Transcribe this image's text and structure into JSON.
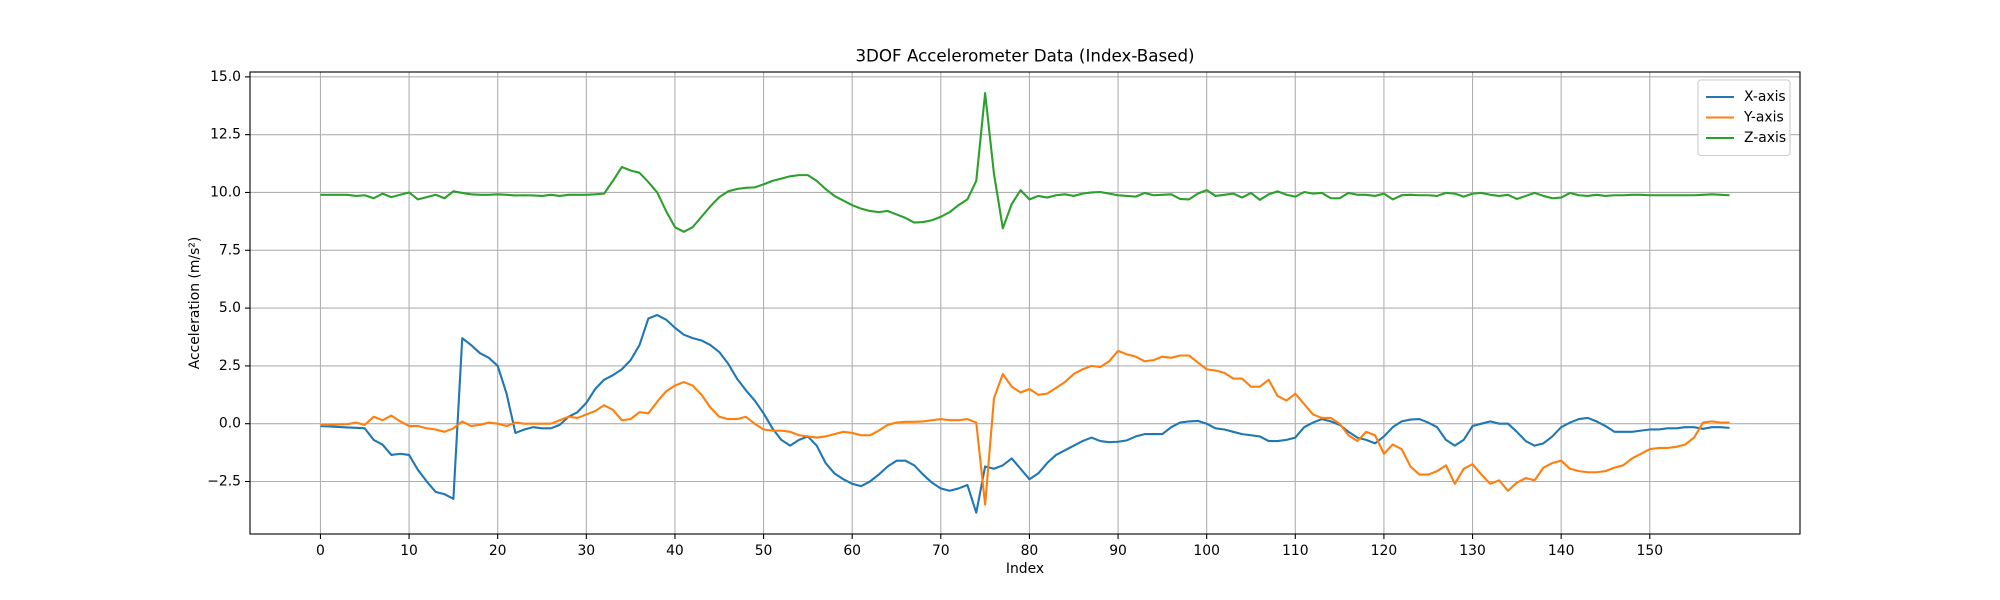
{
  "chart_data": {
    "type": "line",
    "title": "3DOF Accelerometer Data (Index-Based)",
    "xlabel": "Index",
    "ylabel": "Acceleration (m/s²)",
    "x": [
      0,
      1,
      2,
      3,
      4,
      5,
      6,
      7,
      8,
      9,
      10,
      11,
      12,
      13,
      14,
      15,
      16,
      17,
      18,
      19,
      20,
      21,
      22,
      23,
      24,
      25,
      26,
      27,
      28,
      29,
      30,
      31,
      32,
      33,
      34,
      35,
      36,
      37,
      38,
      39,
      40,
      41,
      42,
      43,
      44,
      45,
      46,
      47,
      48,
      49,
      50,
      51,
      52,
      53,
      54,
      55,
      56,
      57,
      58,
      59,
      60,
      61,
      62,
      63,
      64,
      65,
      66,
      67,
      68,
      69,
      70,
      71,
      72,
      73,
      74,
      75,
      76,
      77,
      78,
      79,
      80,
      81,
      82,
      83,
      84,
      85,
      86,
      87,
      88,
      89,
      90,
      91,
      92,
      93,
      94,
      95,
      96,
      97,
      98,
      99,
      100,
      101,
      102,
      103,
      104,
      105,
      106,
      107,
      108,
      109,
      110,
      111,
      112,
      113,
      114,
      115,
      116,
      117,
      118,
      119,
      120,
      121,
      122,
      123,
      124,
      125,
      126,
      127,
      128,
      129,
      130,
      131,
      132,
      133,
      134,
      135,
      136,
      137,
      138,
      139,
      140,
      141,
      142,
      143,
      144,
      145,
      146,
      147,
      148,
      149,
      150,
      151,
      152,
      153,
      154,
      155,
      156,
      157,
      158,
      159
    ],
    "series": [
      {
        "name": "X-axis",
        "color": "#1f77b4",
        "values": [
          -0.1,
          -0.12,
          -0.14,
          -0.16,
          -0.18,
          -0.2,
          -0.7,
          -0.9,
          -1.35,
          -1.3,
          -1.35,
          -2.0,
          -2.5,
          -2.95,
          -3.05,
          -3.25,
          3.7,
          3.4,
          3.05,
          2.85,
          2.5,
          1.3,
          -0.4,
          -0.25,
          -0.15,
          -0.2,
          -0.2,
          -0.05,
          0.3,
          0.5,
          0.9,
          1.5,
          1.9,
          2.1,
          2.35,
          2.75,
          3.4,
          4.55,
          4.7,
          4.5,
          4.15,
          3.85,
          3.7,
          3.6,
          3.4,
          3.1,
          2.6,
          1.95,
          1.45,
          1.0,
          0.45,
          -0.2,
          -0.7,
          -0.95,
          -0.7,
          -0.55,
          -0.95,
          -1.7,
          -2.15,
          -2.4,
          -2.6,
          -2.7,
          -2.5,
          -2.2,
          -1.85,
          -1.6,
          -1.6,
          -1.8,
          -2.2,
          -2.55,
          -2.8,
          -2.9,
          -2.8,
          -2.65,
          -3.85,
          -1.85,
          -1.95,
          -1.8,
          -1.5,
          -1.95,
          -2.4,
          -2.15,
          -1.7,
          -1.35,
          -1.15,
          -0.95,
          -0.75,
          -0.6,
          -0.75,
          -0.8,
          -0.78,
          -0.72,
          -0.55,
          -0.45,
          -0.45,
          -0.45,
          -0.15,
          0.05,
          0.1,
          0.12,
          0.0,
          -0.2,
          -0.25,
          -0.35,
          -0.45,
          -0.5,
          -0.55,
          -0.75,
          -0.75,
          -0.7,
          -0.6,
          -0.15,
          0.05,
          0.2,
          0.1,
          -0.05,
          -0.35,
          -0.6,
          -0.7,
          -0.85,
          -0.55,
          -0.15,
          0.1,
          0.18,
          0.2,
          0.05,
          -0.15,
          -0.7,
          -0.95,
          -0.7,
          -0.1,
          0.0,
          0.1,
          0.0,
          0.0,
          -0.35,
          -0.75,
          -0.95,
          -0.85,
          -0.55,
          -0.15,
          0.05,
          0.2,
          0.25,
          0.1,
          -0.1,
          -0.35,
          -0.35,
          -0.35,
          -0.3,
          -0.25,
          -0.25,
          -0.2,
          -0.2,
          -0.15,
          -0.15,
          -0.22,
          -0.15,
          -0.15,
          -0.18
        ]
      },
      {
        "name": "Y-axis",
        "color": "#ff7f0e",
        "values": [
          -0.05,
          -0.05,
          -0.03,
          -0.02,
          0.05,
          -0.05,
          0.3,
          0.15,
          0.35,
          0.1,
          -0.1,
          -0.1,
          -0.2,
          -0.25,
          -0.35,
          -0.2,
          0.1,
          -0.1,
          -0.05,
          0.05,
          0.0,
          -0.1,
          0.05,
          0.0,
          0.0,
          0.0,
          0.0,
          0.15,
          0.3,
          0.25,
          0.4,
          0.55,
          0.8,
          0.6,
          0.15,
          0.2,
          0.5,
          0.45,
          0.95,
          1.4,
          1.65,
          1.8,
          1.65,
          1.25,
          0.7,
          0.3,
          0.2,
          0.2,
          0.3,
          0.0,
          -0.25,
          -0.3,
          -0.3,
          -0.35,
          -0.5,
          -0.55,
          -0.6,
          -0.55,
          -0.45,
          -0.35,
          -0.4,
          -0.5,
          -0.5,
          -0.3,
          -0.05,
          0.05,
          0.08,
          0.08,
          0.1,
          0.15,
          0.2,
          0.15,
          0.15,
          0.2,
          0.05,
          -3.5,
          1.1,
          2.15,
          1.6,
          1.35,
          1.5,
          1.25,
          1.3,
          1.55,
          1.8,
          2.15,
          2.35,
          2.5,
          2.45,
          2.7,
          3.15,
          3.0,
          2.9,
          2.7,
          2.75,
          2.9,
          2.85,
          2.95,
          2.95,
          2.65,
          2.35,
          2.3,
          2.2,
          1.95,
          1.95,
          1.6,
          1.6,
          1.9,
          1.2,
          1.0,
          1.3,
          0.85,
          0.4,
          0.25,
          0.25,
          0.0,
          -0.5,
          -0.75,
          -0.35,
          -0.5,
          -1.3,
          -0.9,
          -1.1,
          -1.85,
          -2.2,
          -2.2,
          -2.05,
          -1.8,
          -2.6,
          -1.95,
          -1.75,
          -2.2,
          -2.6,
          -2.45,
          -2.9,
          -2.55,
          -2.35,
          -2.45,
          -1.9,
          -1.7,
          -1.6,
          -1.95,
          -2.05,
          -2.1,
          -2.1,
          -2.05,
          -1.9,
          -1.8,
          -1.5,
          -1.3,
          -1.1,
          -1.05,
          -1.05,
          -1.0,
          -0.9,
          -0.6,
          0.05,
          0.1,
          0.05,
          0.05
        ]
      },
      {
        "name": "Z-axis",
        "color": "#2ca02c",
        "values": [
          9.9,
          9.9,
          9.9,
          9.9,
          9.85,
          9.88,
          9.75,
          9.95,
          9.8,
          9.9,
          10.0,
          9.7,
          9.8,
          9.9,
          9.75,
          10.05,
          9.98,
          9.92,
          9.9,
          9.9,
          9.92,
          9.9,
          9.87,
          9.88,
          9.87,
          9.85,
          9.9,
          9.85,
          9.9,
          9.9,
          9.9,
          9.92,
          9.95,
          10.5,
          11.1,
          10.95,
          10.85,
          10.45,
          10.0,
          9.2,
          8.5,
          8.3,
          8.5,
          8.95,
          9.4,
          9.8,
          10.05,
          10.15,
          10.2,
          10.22,
          10.35,
          10.5,
          10.6,
          10.7,
          10.75,
          10.75,
          10.5,
          10.15,
          9.85,
          9.65,
          9.45,
          9.3,
          9.2,
          9.15,
          9.2,
          9.05,
          8.9,
          8.7,
          8.72,
          8.8,
          8.95,
          9.15,
          9.45,
          9.7,
          10.5,
          14.3,
          10.8,
          8.45,
          9.5,
          10.1,
          9.7,
          9.85,
          9.78,
          9.88,
          9.92,
          9.85,
          9.95,
          10.0,
          10.02,
          9.95,
          9.88,
          9.85,
          9.82,
          9.98,
          9.88,
          9.9,
          9.92,
          9.72,
          9.7,
          9.95,
          10.1,
          9.85,
          9.9,
          9.95,
          9.78,
          9.98,
          9.68,
          9.92,
          10.05,
          9.9,
          9.82,
          10.02,
          9.95,
          9.98,
          9.75,
          9.75,
          9.98,
          9.9,
          9.9,
          9.85,
          9.95,
          9.7,
          9.88,
          9.9,
          9.88,
          9.88,
          9.85,
          9.98,
          9.95,
          9.82,
          9.95,
          9.98,
          9.9,
          9.85,
          9.9,
          9.72,
          9.85,
          9.98,
          9.85,
          9.75,
          9.78,
          9.98,
          9.88,
          9.85,
          9.9,
          9.85,
          9.88,
          9.88,
          9.9,
          9.9,
          9.88,
          9.88,
          9.88,
          9.88,
          9.88,
          9.88,
          9.9,
          9.92,
          9.9,
          9.88
        ]
      }
    ],
    "xlim": [
      -7.95,
      166.95
    ],
    "ylim": [
      -4.77,
      15.21
    ],
    "xticks": [
      0,
      10,
      20,
      30,
      40,
      50,
      60,
      70,
      80,
      90,
      100,
      110,
      120,
      130,
      140,
      150
    ],
    "yticks": [
      {
        "value": -2.5,
        "label": "−2.5"
      },
      {
        "value": 0,
        "label": "0.0"
      },
      2.5,
      {
        "value": 5,
        "label": "5.0"
      },
      7.5,
      {
        "value": 10,
        "label": "10.0"
      },
      12.5,
      {
        "value": 15,
        "label": "15.0"
      }
    ],
    "grid": true,
    "legend": "upper right"
  }
}
